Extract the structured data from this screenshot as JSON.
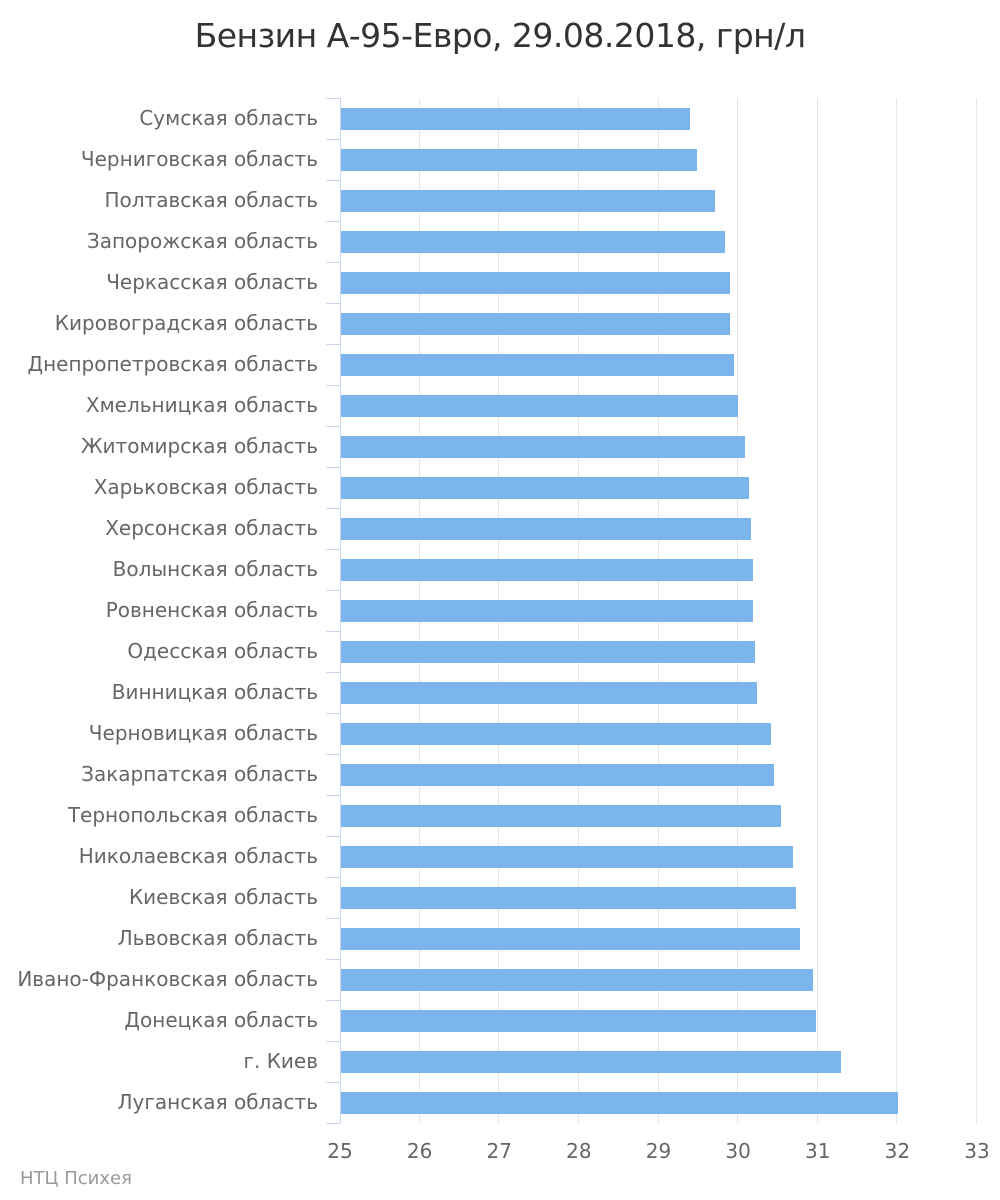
{
  "title": "Бензин А-95-Евро, 29.08.2018, грн/л",
  "credits": "НТЦ Психея",
  "colors": {
    "bar": "#7cb5ec",
    "grid": "#e6e6e6",
    "axis": "#ccd6eb",
    "axis_label": "#666666",
    "title": "#333333",
    "credits": "#999999"
  },
  "chart_data": {
    "type": "bar",
    "orientation": "horizontal",
    "title": "Бензин А-95-Евро, 29.08.2018, грн/л",
    "xlabel": "",
    "ylabel": "",
    "xlim": [
      25,
      33
    ],
    "x_ticks": [
      25,
      26,
      27,
      28,
      29,
      30,
      31,
      32,
      33
    ],
    "grid": true,
    "legend": false,
    "categories": [
      "Сумская область",
      "Черниговская область",
      "Полтавская область",
      "Запорожская область",
      "Черкасская область",
      "Кировоградская область",
      "Днепропетровская область",
      "Хмельницкая область",
      "Житомирская область",
      "Харьковская область",
      "Херсонская область",
      "Волынская область",
      "Ровненская область",
      "Одесская область",
      "Винницкая область",
      "Черновицкая область",
      "Закарпатская область",
      "Тернопольская область",
      "Николаевская область",
      "Киевская область",
      "Львовская область",
      "Ивано-Франковская область",
      "Донецкая область",
      "г. Киев",
      "Луганская область"
    ],
    "values": [
      29.38,
      29.47,
      29.7,
      29.82,
      29.88,
      29.88,
      29.93,
      29.99,
      30.08,
      30.12,
      30.15,
      30.17,
      30.18,
      30.2,
      30.22,
      30.4,
      30.44,
      30.52,
      30.68,
      30.71,
      30.77,
      30.93,
      30.96,
      31.28,
      31.99
    ]
  }
}
